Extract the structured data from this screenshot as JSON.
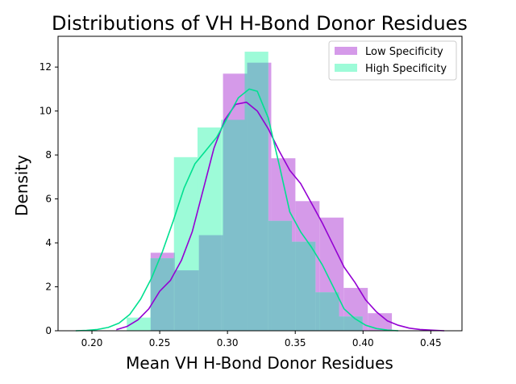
{
  "chart_data": {
    "type": "bar",
    "title": "Distributions of VH H-Bond Donor Residues",
    "xlabel": "Mean VH H-Bond Donor Residues",
    "ylabel": "Density",
    "xlim": [
      0.175,
      0.473
    ],
    "ylim": [
      0,
      13.4
    ],
    "xticks": [
      0.2,
      0.25,
      0.3,
      0.35,
      0.4,
      0.45
    ],
    "xtick_labels": [
      "0.20",
      "0.25",
      "0.30",
      "0.35",
      "0.40",
      "0.45"
    ],
    "yticks": [
      0,
      2,
      4,
      6,
      8,
      10,
      12
    ],
    "ytick_labels": [
      "0",
      "2",
      "4",
      "6",
      "8",
      "10",
      "12"
    ],
    "grid": false,
    "legend_position": "top-right",
    "series": [
      {
        "name": "Low Specificity",
        "color": "#9400d3",
        "hist_color": "#d59ae9",
        "hist_edges": [
          0.2433,
          0.2611,
          0.2789,
          0.2967,
          0.3145,
          0.3323,
          0.3501,
          0.3679,
          0.3857,
          0.4035,
          0.4213
        ],
        "hist_values": [
          3.55,
          2.75,
          4.35,
          11.7,
          12.2,
          7.85,
          5.9,
          5.15,
          1.95,
          0.8
        ],
        "kde_x": [
          0.218,
          0.226,
          0.234,
          0.242,
          0.25,
          0.258,
          0.266,
          0.274,
          0.282,
          0.29,
          0.298,
          0.306,
          0.314,
          0.322,
          0.33,
          0.338,
          0.346,
          0.354,
          0.362,
          0.37,
          0.378,
          0.386,
          0.394,
          0.402,
          0.41,
          0.418,
          0.426,
          0.434,
          0.442,
          0.45,
          0.46
        ],
        "kde_y": [
          0.05,
          0.2,
          0.5,
          1.0,
          1.8,
          2.3,
          3.2,
          4.5,
          6.4,
          8.3,
          9.6,
          10.3,
          10.4,
          10.0,
          9.2,
          8.2,
          7.3,
          6.7,
          5.8,
          4.9,
          3.9,
          2.9,
          2.2,
          1.4,
          0.85,
          0.45,
          0.25,
          0.12,
          0.06,
          0.03,
          0.0
        ]
      },
      {
        "name": "High Specificity",
        "color": "#00e090",
        "hist_color": "#9dfbd8",
        "hist_edges": [
          0.2257,
          0.2431,
          0.2605,
          0.2779,
          0.2953,
          0.3127,
          0.3301,
          0.3475,
          0.3649,
          0.3823,
          0.3997
        ],
        "hist_values": [
          0.6,
          3.3,
          7.9,
          9.25,
          9.6,
          12.7,
          5.0,
          4.05,
          1.75,
          0.65
        ],
        "kde_x": [
          0.188,
          0.196,
          0.204,
          0.212,
          0.22,
          0.228,
          0.236,
          0.244,
          0.252,
          0.26,
          0.268,
          0.276,
          0.284,
          0.292,
          0.3,
          0.308,
          0.316,
          0.322,
          0.33,
          0.338,
          0.346,
          0.354,
          0.362,
          0.37,
          0.378,
          0.386,
          0.394,
          0.402,
          0.41,
          0.418,
          0.426
        ],
        "kde_y": [
          0.0,
          0.02,
          0.06,
          0.15,
          0.35,
          0.75,
          1.45,
          2.4,
          3.6,
          5.0,
          6.5,
          7.6,
          8.2,
          8.8,
          9.7,
          10.6,
          11.0,
          10.9,
          9.7,
          7.6,
          5.4,
          4.5,
          3.8,
          3.0,
          2.0,
          1.0,
          0.55,
          0.25,
          0.1,
          0.03,
          0.0
        ]
      }
    ],
    "overlap_color": "#80bfcb"
  }
}
